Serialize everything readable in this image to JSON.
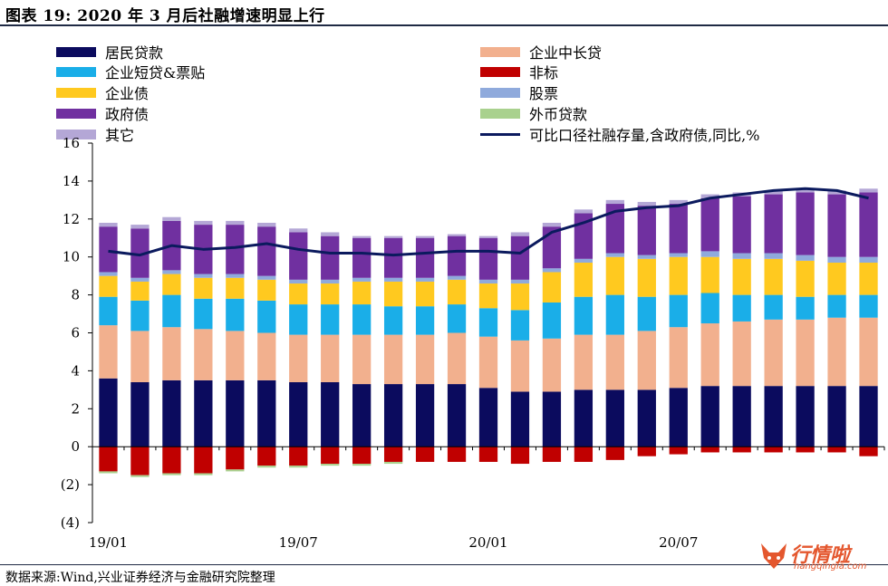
{
  "figure": {
    "title": "图表 19:  2020 年 3 月后社融增速明显上行",
    "source": "数据来源:Wind,兴业证券经济与金融研究院整理"
  },
  "watermark": {
    "text": "行情啦",
    "url": "hangqingla.com"
  },
  "colors": {
    "resident_loans": "#0b0b5e",
    "corp_mlt_loans": "#f2b08e",
    "corp_short_bills": "#1aaee8",
    "non_standard": "#c00000",
    "corp_bonds": "#ffc91f",
    "equity": "#8faadc",
    "gov_bonds": "#7030a0",
    "fx_loans": "#a9d18e",
    "other": "#b4a7d6",
    "line": "#0b1a5e"
  },
  "chart_data": {
    "type": "bar",
    "stacked": true,
    "title": "",
    "xlabel": "",
    "ylabel": "",
    "ylim": [
      -4,
      16
    ],
    "yticks": [
      16,
      14,
      12,
      10,
      8,
      6,
      4,
      2,
      0,
      -2,
      -4
    ],
    "ytick_labels": [
      "16",
      "14",
      "12",
      "10",
      "8",
      "6",
      "4",
      "2",
      "0",
      "(2)",
      "(4)"
    ],
    "xtick_labels": [
      "19/01",
      "19/07",
      "20/01",
      "20/07"
    ],
    "xtick_positions": [
      0,
      6,
      12,
      18
    ],
    "grid": false,
    "categories": [
      "19/01",
      "19/02",
      "19/03",
      "19/04",
      "19/05",
      "19/06",
      "19/07",
      "19/08",
      "19/09",
      "19/10",
      "19/11",
      "19/12",
      "20/01",
      "20/02",
      "20/03",
      "20/04",
      "20/05",
      "20/06",
      "20/07",
      "20/08",
      "20/09",
      "20/10",
      "20/11",
      "20/12",
      "21/01"
    ],
    "legend": [
      {
        "key": "resident_loans",
        "label": "居民贷款",
        "kind": "bar"
      },
      {
        "key": "corp_mlt_loans",
        "label": "企业中长贷",
        "kind": "bar"
      },
      {
        "key": "corp_short_bills",
        "label": "企业短贷&票贴",
        "kind": "bar"
      },
      {
        "key": "non_standard",
        "label": "非标",
        "kind": "bar"
      },
      {
        "key": "corp_bonds",
        "label": "企业债",
        "kind": "bar"
      },
      {
        "key": "equity",
        "label": "股票",
        "kind": "bar"
      },
      {
        "key": "gov_bonds",
        "label": "政府债",
        "kind": "bar"
      },
      {
        "key": "fx_loans",
        "label": "外币贷款",
        "kind": "bar"
      },
      {
        "key": "other",
        "label": "其它",
        "kind": "bar"
      },
      {
        "key": "line",
        "label": "可比口径社融存量,含政府债,同比,%",
        "kind": "line"
      }
    ],
    "series": [
      {
        "key": "resident_loans",
        "name": "居民贷款",
        "values": [
          3.6,
          3.4,
          3.5,
          3.5,
          3.5,
          3.5,
          3.4,
          3.4,
          3.3,
          3.3,
          3.3,
          3.3,
          3.1,
          2.9,
          2.9,
          3.0,
          3.0,
          3.0,
          3.1,
          3.2,
          3.2,
          3.2,
          3.2,
          3.2,
          3.2
        ]
      },
      {
        "key": "corp_mlt_loans",
        "name": "企业中长贷",
        "values": [
          2.8,
          2.7,
          2.8,
          2.7,
          2.6,
          2.5,
          2.5,
          2.5,
          2.6,
          2.6,
          2.6,
          2.7,
          2.7,
          2.7,
          2.8,
          2.9,
          2.9,
          3.1,
          3.2,
          3.3,
          3.4,
          3.5,
          3.5,
          3.6,
          3.6
        ]
      },
      {
        "key": "corp_short_bills",
        "name": "企业短贷&票贴",
        "values": [
          1.5,
          1.6,
          1.7,
          1.6,
          1.7,
          1.7,
          1.6,
          1.6,
          1.6,
          1.5,
          1.5,
          1.5,
          1.5,
          1.6,
          1.9,
          2.0,
          2.1,
          1.8,
          1.7,
          1.6,
          1.4,
          1.3,
          1.2,
          1.2,
          1.2
        ]
      },
      {
        "key": "corp_bonds",
        "name": "企业债",
        "values": [
          1.1,
          1.0,
          1.1,
          1.1,
          1.1,
          1.1,
          1.1,
          1.1,
          1.2,
          1.3,
          1.3,
          1.3,
          1.3,
          1.4,
          1.6,
          1.8,
          2.0,
          2.0,
          2.0,
          1.9,
          1.9,
          1.9,
          1.9,
          1.7,
          1.7
        ]
      },
      {
        "key": "equity",
        "name": "股票",
        "values": [
          0.2,
          0.2,
          0.2,
          0.2,
          0.2,
          0.2,
          0.2,
          0.2,
          0.2,
          0.2,
          0.2,
          0.2,
          0.2,
          0.2,
          0.2,
          0.2,
          0.2,
          0.2,
          0.2,
          0.3,
          0.3,
          0.3,
          0.3,
          0.3,
          0.3
        ]
      },
      {
        "key": "gov_bonds",
        "name": "政府债",
        "values": [
          2.4,
          2.6,
          2.6,
          2.6,
          2.6,
          2.6,
          2.5,
          2.3,
          2.1,
          2.1,
          2.1,
          2.1,
          2.2,
          2.3,
          2.2,
          2.4,
          2.6,
          2.6,
          2.6,
          2.8,
          3.0,
          3.1,
          3.3,
          3.3,
          3.4
        ]
      },
      {
        "key": "fx_loans",
        "name": "外币贷款",
        "values": [
          -0.1,
          -0.1,
          -0.1,
          -0.1,
          -0.1,
          -0.1,
          -0.1,
          -0.1,
          -0.1,
          -0.1,
          0,
          0,
          0,
          0,
          0,
          0,
          0,
          0,
          0,
          0,
          0,
          0,
          0,
          0,
          0
        ]
      },
      {
        "key": "other",
        "name": "其它",
        "values": [
          0.2,
          0.2,
          0.2,
          0.2,
          0.2,
          0.2,
          0.2,
          0.2,
          0.1,
          0.1,
          0.1,
          0.1,
          0.1,
          0.2,
          0.2,
          0.2,
          0.2,
          0.2,
          0.2,
          0.2,
          0.2,
          0.2,
          0.2,
          0.2,
          0.2
        ]
      },
      {
        "key": "non_standard",
        "name": "非标",
        "values": [
          -1.3,
          -1.5,
          -1.4,
          -1.4,
          -1.2,
          -1.0,
          -1.0,
          -0.9,
          -0.9,
          -0.8,
          -0.8,
          -0.8,
          -0.8,
          -0.9,
          -0.8,
          -0.8,
          -0.7,
          -0.5,
          -0.4,
          -0.3,
          -0.3,
          -0.3,
          -0.3,
          -0.3,
          -0.5
        ]
      }
    ],
    "line": {
      "key": "line",
      "name": "可比口径社融存量,含政府债,同比,%",
      "values": [
        10.3,
        10.1,
        10.6,
        10.4,
        10.5,
        10.7,
        10.4,
        10.2,
        10.2,
        10.1,
        10.2,
        10.3,
        10.3,
        10.2,
        11.3,
        11.8,
        12.4,
        12.6,
        12.7,
        13.1,
        13.3,
        13.5,
        13.6,
        13.5,
        13.1
      ]
    }
  }
}
